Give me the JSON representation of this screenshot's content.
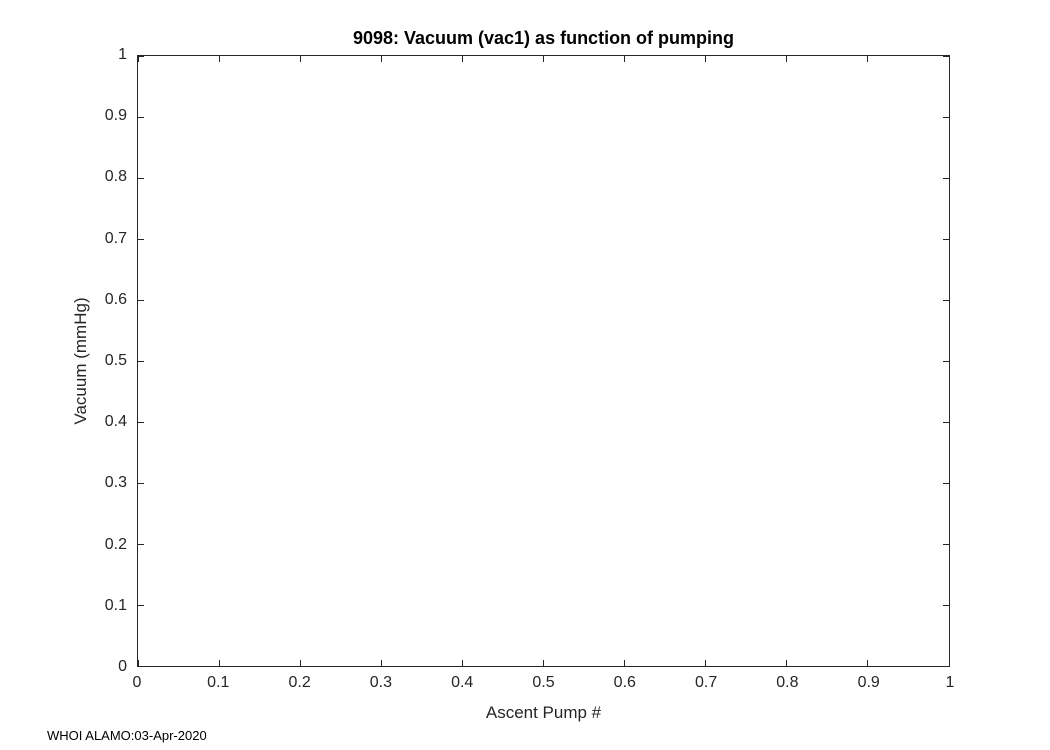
{
  "chart_data": {
    "type": "line",
    "title": "9098: Vacuum (vac1) as function of pumping",
    "xlabel": "Ascent Pump #",
    "ylabel": "Vacuum (mmHg)",
    "xlim": [
      0,
      1
    ],
    "ylim": [
      0,
      1
    ],
    "xticks": [
      0,
      0.1,
      0.2,
      0.3,
      0.4,
      0.5,
      0.6,
      0.7,
      0.8,
      0.9,
      1
    ],
    "xtick_labels": [
      "0",
      "0.1",
      "0.2",
      "0.3",
      "0.4",
      "0.5",
      "0.6",
      "0.7",
      "0.8",
      "0.9",
      "1"
    ],
    "yticks": [
      0,
      0.1,
      0.2,
      0.3,
      0.4,
      0.5,
      0.6,
      0.7,
      0.8,
      0.9,
      1
    ],
    "ytick_labels": [
      "0",
      "0.1",
      "0.2",
      "0.3",
      "0.4",
      "0.5",
      "0.6",
      "0.7",
      "0.8",
      "0.9",
      "1"
    ],
    "grid": false,
    "series": [],
    "annotation": "WHOI ALAMO:03-Apr-2020",
    "axes_color": "#262626",
    "background": "#ffffff"
  }
}
